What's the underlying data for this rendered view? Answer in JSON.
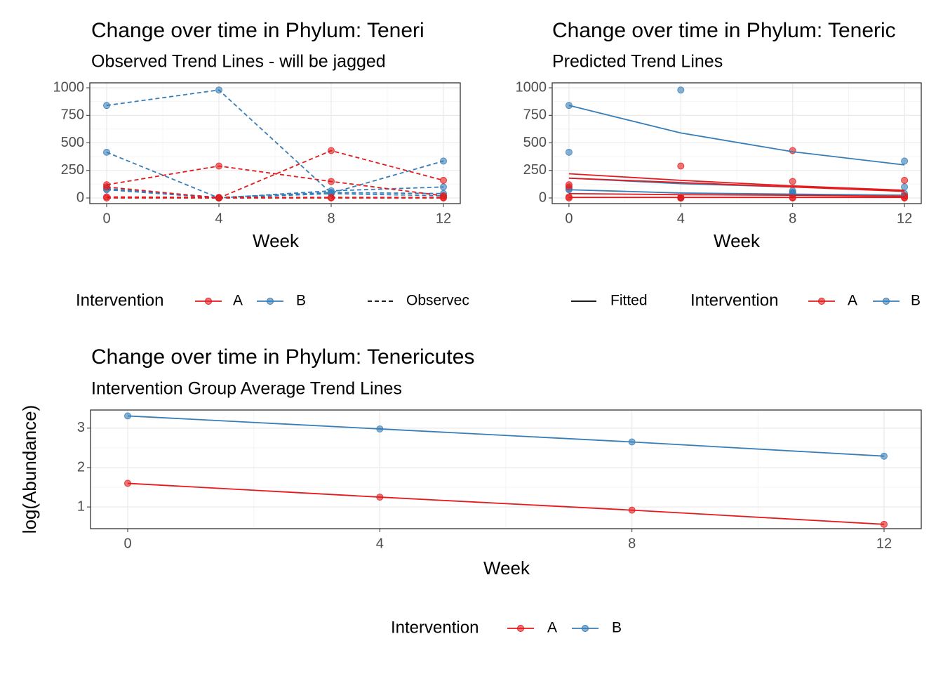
{
  "chart_data": [
    {
      "type": "line",
      "title": "Change over time in Phylum: Teneri",
      "subtitle": "Observed Trend Lines - will be jagged",
      "x_label": "Week",
      "x": [
        0,
        4,
        8,
        12
      ],
      "xlim": [
        -0.6,
        12.6
      ],
      "xticks": [
        0,
        4,
        8,
        12
      ],
      "ylim": [
        -51,
        1045
      ],
      "yticks": [
        0,
        250,
        500,
        750,
        1000
      ],
      "grid": true,
      "linestyle": "dashed",
      "markers": true,
      "series": [
        {
          "name": "B",
          "color": "#377eb8",
          "values": [
            840,
            980,
            45,
            335
          ]
        },
        {
          "name": "B",
          "color": "#377eb8",
          "values": [
            415,
            0,
            65,
            100
          ]
        },
        {
          "name": "B",
          "color": "#377eb8",
          "values": [
            85,
            5,
            50,
            40
          ]
        },
        {
          "name": "B",
          "color": "#377eb8",
          "values": [
            75,
            0,
            40,
            20
          ]
        },
        {
          "name": "A",
          "color": "#e41a1c",
          "values": [
            120,
            290,
            150,
            20
          ]
        },
        {
          "name": "A",
          "color": "#e41a1c",
          "values": [
            100,
            0,
            430,
            160
          ]
        },
        {
          "name": "A",
          "color": "#e41a1c",
          "values": [
            10,
            5,
            5,
            5
          ]
        },
        {
          "name": "A",
          "color": "#e41a1c",
          "values": [
            0,
            0,
            0,
            0
          ]
        }
      ],
      "legend": {
        "title": "Intervention",
        "items": [
          "A",
          "B"
        ],
        "colors": [
          "#e41a1c",
          "#377eb8"
        ],
        "linetype": "Observec"
      }
    },
    {
      "type": "line",
      "title": "Change over time in Phylum: Teneric",
      "subtitle": "Predicted Trend Lines",
      "x_label": "Week",
      "x": [
        0,
        4,
        8,
        12
      ],
      "xlim": [
        -0.6,
        12.6
      ],
      "xticks": [
        0,
        4,
        8,
        12
      ],
      "ylim": [
        -51,
        1045
      ],
      "yticks": [
        0,
        250,
        500,
        750,
        1000
      ],
      "grid": true,
      "linestyle": "solid",
      "markers": false,
      "points": [
        {
          "name": "B",
          "color": "#377eb8",
          "values": [
            840,
            980,
            45,
            335
          ]
        },
        {
          "name": "B",
          "color": "#377eb8",
          "values": [
            415,
            0,
            65,
            100
          ]
        },
        {
          "name": "B",
          "color": "#377eb8",
          "values": [
            85,
            5,
            50,
            40
          ]
        },
        {
          "name": "B",
          "color": "#377eb8",
          "values": [
            75,
            0,
            40,
            20
          ]
        },
        {
          "name": "A",
          "color": "#e41a1c",
          "values": [
            120,
            290,
            150,
            20
          ]
        },
        {
          "name": "A",
          "color": "#e41a1c",
          "values": [
            100,
            0,
            430,
            160
          ]
        },
        {
          "name": "A",
          "color": "#e41a1c",
          "values": [
            10,
            5,
            5,
            5
          ]
        },
        {
          "name": "A",
          "color": "#e41a1c",
          "values": [
            0,
            0,
            0,
            0
          ]
        }
      ],
      "series": [
        {
          "name": "B",
          "color": "#377eb8",
          "values": [
            840,
            590,
            420,
            300
          ]
        },
        {
          "name": "B",
          "color": "#377eb8",
          "values": [
            180,
            130,
            100,
            70
          ]
        },
        {
          "name": "B",
          "color": "#377eb8",
          "values": [
            75,
            45,
            35,
            25
          ]
        },
        {
          "name": "A",
          "color": "#e41a1c",
          "values": [
            220,
            160,
            110,
            70
          ]
        },
        {
          "name": "A",
          "color": "#e41a1c",
          "values": [
            180,
            140,
            100,
            60
          ]
        },
        {
          "name": "A",
          "color": "#e41a1c",
          "values": [
            40,
            30,
            25,
            15
          ]
        },
        {
          "name": "A",
          "color": "#e41a1c",
          "values": [
            5,
            5,
            5,
            5
          ]
        }
      ],
      "legend": {
        "title": "Intervention",
        "items": [
          "A",
          "B"
        ],
        "colors": [
          "#e41a1c",
          "#377eb8"
        ],
        "linetype": "Fitted"
      }
    },
    {
      "type": "line",
      "title": "Change over time in Phylum: Tenericutes",
      "subtitle": "Intervention Group Average Trend Lines",
      "x_label": "Week",
      "y_label": "log(Abundance)",
      "x": [
        0,
        4,
        8,
        12
      ],
      "xlim": [
        -0.59,
        12.59
      ],
      "xticks": [
        0,
        4,
        8,
        12
      ],
      "ylim": [
        0.45,
        3.46
      ],
      "yticks": [
        1,
        2,
        3
      ],
      "grid": true,
      "linestyle": "solid",
      "markers": true,
      "series": [
        {
          "name": "A",
          "color": "#e41a1c",
          "values": [
            1.6,
            1.25,
            0.92,
            0.56
          ]
        },
        {
          "name": "B",
          "color": "#377eb8",
          "values": [
            3.31,
            2.98,
            2.65,
            2.29
          ]
        }
      ],
      "legend": {
        "title": "Intervention",
        "items": [
          "A",
          "B"
        ],
        "colors": [
          "#e41a1c",
          "#377eb8"
        ]
      }
    }
  ]
}
